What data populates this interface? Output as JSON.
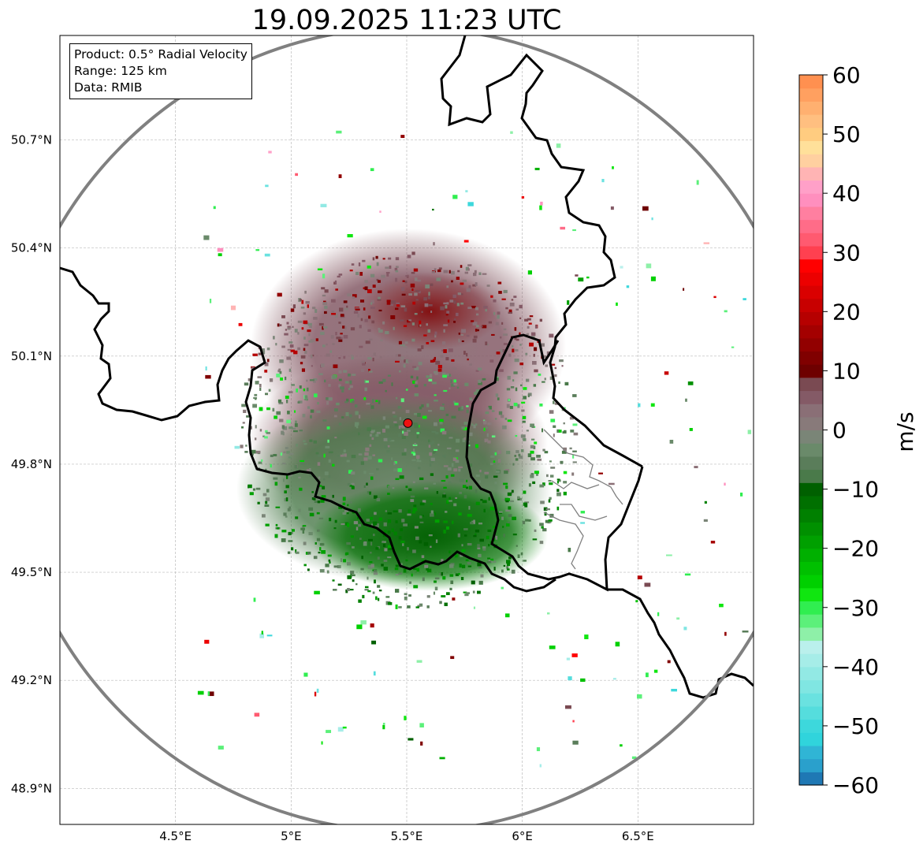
{
  "title": "19.09.2025 11:23 UTC",
  "info": {
    "product": "Product: 0.5° Radial Velocity",
    "range": "Range: 125 km",
    "source": "Data: RMIB"
  },
  "map": {
    "lon_range": [
      4.0,
      7.0
    ],
    "lat_range": [
      48.8,
      50.99
    ],
    "lon_ticks": [
      4.5,
      5.0,
      5.5,
      6.0,
      6.5
    ],
    "lon_tick_labels": [
      "4.5°E",
      "5°E",
      "5.5°E",
      "6°E",
      "6.5°E"
    ],
    "lat_ticks": [
      48.9,
      49.2,
      49.5,
      49.8,
      50.1,
      50.4,
      50.7
    ],
    "lat_tick_labels": [
      "48.9°N",
      "49.2°N",
      "49.5°N",
      "49.8°N",
      "50.1°N",
      "50.4°N",
      "50.7°N"
    ],
    "radar_site": {
      "lon": 5.505,
      "lat": 49.914
    },
    "range_ring_color": "#808080",
    "border_color": "#000000",
    "marker_color": "#ee1111"
  },
  "colorbar": {
    "min": -60,
    "max": 60,
    "ticks": [
      60,
      50,
      40,
      30,
      20,
      10,
      0,
      -10,
      -20,
      -30,
      -40,
      -50,
      -60
    ],
    "tick_labels": [
      "60",
      "50",
      "40",
      "30",
      "20",
      "10",
      "0",
      "−10",
      "−20",
      "−30",
      "−40",
      "−50",
      "−60"
    ],
    "unit": "m/s",
    "colors": [
      "#1f78b4",
      "#2aa0cc",
      "#30b5d5",
      "#30d4dc",
      "#3dd8dc",
      "#55dddd",
      "#6ae2e0",
      "#80e6e2",
      "#92e9e4",
      "#a6ede8",
      "#baf0ec",
      "#8ef0a8",
      "#5cf07a",
      "#30ee50",
      "#10e610",
      "#00d000",
      "#00c000",
      "#00b000",
      "#00a000",
      "#009000",
      "#008000",
      "#007000",
      "#006000",
      "#4a7a4a",
      "#5a7d5a",
      "#6a8a6a",
      "#7a8577",
      "#887a7a",
      "#8a6f76",
      "#845a66",
      "#7a4a52",
      "#6e0000",
      "#800000",
      "#920000",
      "#a40000",
      "#b60000",
      "#c80000",
      "#da0000",
      "#ec0000",
      "#ff0000",
      "#ff4050",
      "#ff5a70",
      "#ff6c88",
      "#ff7fa0",
      "#ff8fbe",
      "#ffa0c8",
      "#ffb4b4",
      "#ffd0a0",
      "#ffe09a",
      "#ffcc80",
      "#ffbf80",
      "#ffb070",
      "#ffa060",
      "#ff9050"
    ]
  }
}
